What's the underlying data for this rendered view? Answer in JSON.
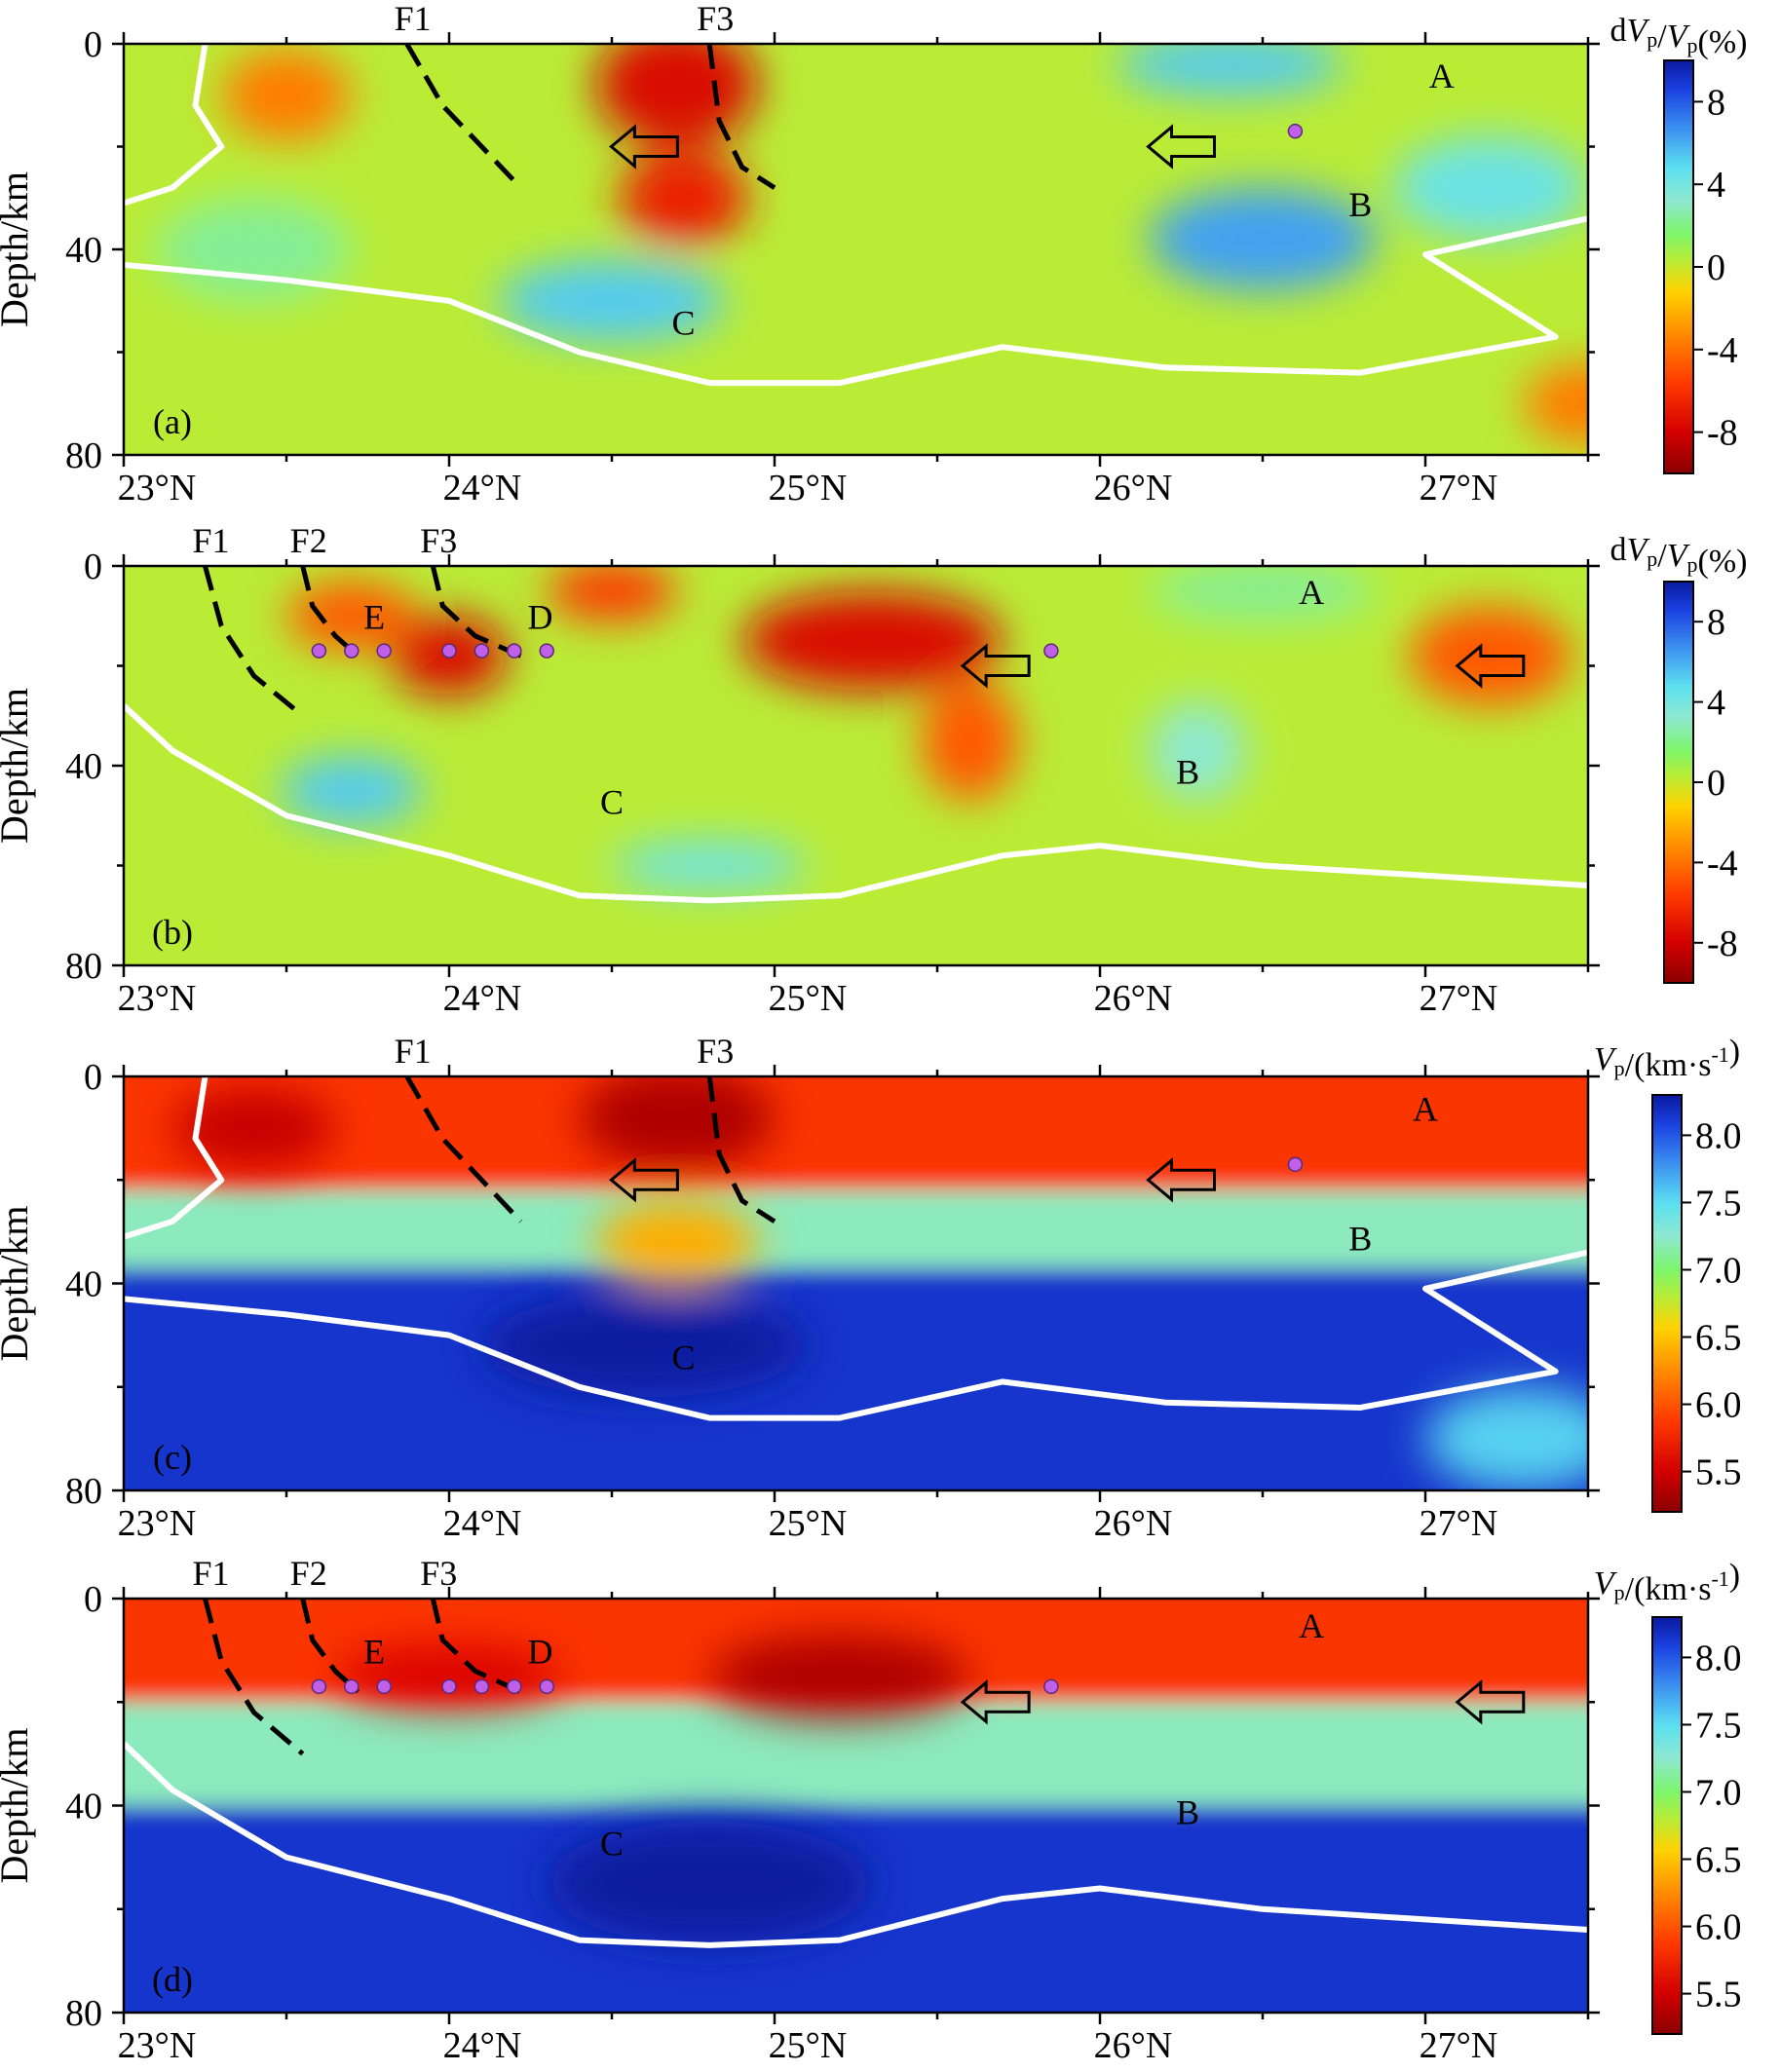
{
  "chart_data": [
    {
      "type": "heatmap",
      "panel": "(a)",
      "field": "dv",
      "ylabel": "Depth/km",
      "x_ticks": [
        "23°N",
        "24°N",
        "25°N",
        "26°N",
        "27°N"
      ],
      "y_ticks": [
        "0",
        "40",
        "80"
      ],
      "xlim": [
        23,
        27.5
      ],
      "ylim": [
        0,
        80
      ],
      "faults": [
        {
          "name": "F1",
          "x0": 23.87,
          "points": [
            [
              23.87,
              0
            ],
            [
              23.98,
              12
            ],
            [
              24.1,
              20
            ],
            [
              24.22,
              28
            ]
          ]
        },
        {
          "name": "F3",
          "x0": 24.8,
          "points": [
            [
              24.8,
              0
            ],
            [
              24.83,
              15
            ],
            [
              24.9,
              24
            ],
            [
              25.0,
              28
            ]
          ]
        }
      ],
      "labels": [
        {
          "text": "A",
          "x": 27.05,
          "y": 7
        },
        {
          "text": "B",
          "x": 26.8,
          "y": 32
        },
        {
          "text": "C",
          "x": 24.72,
          "y": 55
        }
      ],
      "arrows": [
        {
          "x": 24.6,
          "y": 20
        },
        {
          "x": 26.25,
          "y": 20
        }
      ],
      "dots": [
        {
          "x": 26.6,
          "y": 17
        }
      ],
      "white_line_left": [
        [
          23.0,
          31
        ],
        [
          23.15,
          28
        ],
        [
          23.3,
          20
        ],
        [
          23.22,
          12
        ],
        [
          23.25,
          0
        ]
      ],
      "white_line_bottom": [
        [
          23.0,
          43
        ],
        [
          23.5,
          46
        ],
        [
          24.0,
          50
        ],
        [
          24.4,
          60
        ],
        [
          24.8,
          66
        ],
        [
          25.2,
          66
        ],
        [
          25.7,
          59
        ],
        [
          26.2,
          63
        ],
        [
          26.8,
          64
        ],
        [
          27.4,
          57
        ],
        [
          27.0,
          41
        ],
        [
          27.5,
          34
        ]
      ],
      "anomalies": [
        {
          "x": 24.7,
          "y": 8,
          "v": -8,
          "sx": 0.25,
          "sy": 12
        },
        {
          "x": 24.72,
          "y": 30,
          "v": -7,
          "sx": 0.2,
          "sy": 9
        },
        {
          "x": 23.5,
          "y": 10,
          "v": -4,
          "sx": 0.2,
          "sy": 9
        },
        {
          "x": 26.4,
          "y": 4,
          "v": 5,
          "sx": 0.35,
          "sy": 6
        },
        {
          "x": 26.5,
          "y": 38,
          "v": 6,
          "sx": 0.35,
          "sy": 10
        },
        {
          "x": 27.2,
          "y": 28,
          "v": 4,
          "sx": 0.3,
          "sy": 10
        },
        {
          "x": 24.5,
          "y": 50,
          "v": 5,
          "sx": 0.35,
          "sy": 8
        },
        {
          "x": 27.5,
          "y": 70,
          "v": -4,
          "sx": 0.2,
          "sy": 8
        },
        {
          "x": 23.4,
          "y": 40,
          "v": 2,
          "sx": 0.3,
          "sy": 10
        }
      ]
    },
    {
      "type": "heatmap",
      "panel": "(b)",
      "field": "dv",
      "ylabel": "Depth/km",
      "x_ticks": [
        "23°N",
        "24°N",
        "25°N",
        "26°N",
        "27°N"
      ],
      "y_ticks": [
        "0",
        "40",
        "80"
      ],
      "xlim": [
        23,
        27.5
      ],
      "ylim": [
        0,
        80
      ],
      "faults": [
        {
          "name": "F1",
          "x0": 23.25,
          "points": [
            [
              23.25,
              0
            ],
            [
              23.3,
              12
            ],
            [
              23.4,
              22
            ],
            [
              23.55,
              30
            ]
          ]
        },
        {
          "name": "F2",
          "x0": 23.55,
          "points": [
            [
              23.55,
              0
            ],
            [
              23.58,
              8
            ],
            [
              23.65,
              14
            ],
            [
              23.72,
              18
            ]
          ]
        },
        {
          "name": "F3",
          "x0": 23.95,
          "points": [
            [
              23.95,
              0
            ],
            [
              23.98,
              8
            ],
            [
              24.08,
              14
            ],
            [
              24.22,
              18
            ]
          ]
        }
      ],
      "labels": [
        {
          "text": "A",
          "x": 26.65,
          "y": 6
        },
        {
          "text": "B",
          "x": 26.27,
          "y": 42
        },
        {
          "text": "C",
          "x": 24.5,
          "y": 48
        },
        {
          "text": "D",
          "x": 24.28,
          "y": 11
        },
        {
          "text": "E",
          "x": 23.77,
          "y": 11
        }
      ],
      "arrows": [
        {
          "x": 25.68,
          "y": 20
        },
        {
          "x": 27.2,
          "y": 20
        }
      ],
      "dots": [
        {
          "x": 23.6,
          "y": 17
        },
        {
          "x": 23.7,
          "y": 17
        },
        {
          "x": 23.8,
          "y": 17
        },
        {
          "x": 24.0,
          "y": 17
        },
        {
          "x": 24.1,
          "y": 17
        },
        {
          "x": 24.2,
          "y": 17
        },
        {
          "x": 24.3,
          "y": 17
        },
        {
          "x": 25.85,
          "y": 17
        }
      ],
      "white_line_left": [],
      "white_line_bottom": [
        [
          23.0,
          28
        ],
        [
          23.15,
          37
        ],
        [
          23.5,
          50
        ],
        [
          24.0,
          58
        ],
        [
          24.4,
          66
        ],
        [
          24.8,
          67
        ],
        [
          25.2,
          66
        ],
        [
          25.7,
          58
        ],
        [
          26.0,
          56
        ],
        [
          26.5,
          60
        ],
        [
          27.0,
          62
        ],
        [
          27.5,
          64
        ]
      ],
      "anomalies": [
        {
          "x": 25.3,
          "y": 15,
          "v": -8,
          "sx": 0.4,
          "sy": 10
        },
        {
          "x": 24.0,
          "y": 18,
          "v": -8,
          "sx": 0.18,
          "sy": 8
        },
        {
          "x": 23.7,
          "y": 10,
          "v": -5,
          "sx": 0.2,
          "sy": 7
        },
        {
          "x": 24.5,
          "y": 5,
          "v": -6,
          "sx": 0.2,
          "sy": 6
        },
        {
          "x": 25.6,
          "y": 35,
          "v": -5,
          "sx": 0.15,
          "sy": 12
        },
        {
          "x": 27.2,
          "y": 18,
          "v": -5,
          "sx": 0.25,
          "sy": 10
        },
        {
          "x": 23.7,
          "y": 45,
          "v": 5,
          "sx": 0.22,
          "sy": 7
        },
        {
          "x": 24.8,
          "y": 60,
          "v": 4,
          "sx": 0.3,
          "sy": 5
        },
        {
          "x": 26.3,
          "y": 37,
          "v": 3,
          "sx": 0.15,
          "sy": 10
        },
        {
          "x": 26.5,
          "y": 5,
          "v": 2,
          "sx": 0.35,
          "sy": 6
        }
      ]
    },
    {
      "type": "heatmap",
      "panel": "(c)",
      "field": "v",
      "ylabel": "Depth/km",
      "x_ticks": [
        "23°N",
        "24°N",
        "25°N",
        "26°N",
        "27°N"
      ],
      "y_ticks": [
        "0",
        "40",
        "80"
      ],
      "xlim": [
        23,
        27.5
      ],
      "ylim": [
        0,
        80
      ],
      "faults": [
        {
          "name": "F1",
          "x0": 23.87,
          "points": [
            [
              23.87,
              0
            ],
            [
              23.98,
              12
            ],
            [
              24.1,
              20
            ],
            [
              24.22,
              28
            ]
          ]
        },
        {
          "name": "F3",
          "x0": 24.8,
          "points": [
            [
              24.8,
              0
            ],
            [
              24.83,
              15
            ],
            [
              24.9,
              24
            ],
            [
              25.0,
              28
            ]
          ]
        }
      ],
      "labels": [
        {
          "text": "A",
          "x": 27.0,
          "y": 7
        },
        {
          "text": "B",
          "x": 26.8,
          "y": 32
        },
        {
          "text": "C",
          "x": 24.72,
          "y": 55
        }
      ],
      "arrows": [
        {
          "x": 24.6,
          "y": 20
        },
        {
          "x": 26.25,
          "y": 20
        }
      ],
      "dots": [
        {
          "x": 26.6,
          "y": 17
        }
      ],
      "white_line_left": [
        [
          23.0,
          31
        ],
        [
          23.15,
          28
        ],
        [
          23.3,
          20
        ],
        [
          23.22,
          12
        ],
        [
          23.25,
          0
        ]
      ],
      "white_line_bottom": [
        [
          23.0,
          43
        ],
        [
          23.5,
          46
        ],
        [
          24.0,
          50
        ],
        [
          24.4,
          60
        ],
        [
          24.8,
          66
        ],
        [
          25.2,
          66
        ],
        [
          25.7,
          59
        ],
        [
          26.2,
          63
        ],
        [
          26.8,
          64
        ],
        [
          27.4,
          57
        ],
        [
          27.0,
          41
        ],
        [
          27.5,
          34
        ]
      ],
      "layers": [
        22,
        37
      ],
      "anomalies": [
        {
          "x": 24.7,
          "y": 8,
          "v": -0.5,
          "sx": 0.3,
          "sy": 10
        },
        {
          "x": 23.4,
          "y": 10,
          "v": -0.4,
          "sx": 0.25,
          "sy": 8
        },
        {
          "x": 24.7,
          "y": 32,
          "v": -0.8,
          "sx": 0.25,
          "sy": 8
        },
        {
          "x": 24.6,
          "y": 52,
          "v": 0.2,
          "sx": 0.5,
          "sy": 10
        },
        {
          "x": 27.3,
          "y": 70,
          "v": -0.6,
          "sx": 0.3,
          "sy": 10
        }
      ]
    },
    {
      "type": "heatmap",
      "panel": "(d)",
      "field": "v",
      "ylabel": "Depth/km",
      "x_ticks": [
        "23°N",
        "24°N",
        "25°N",
        "26°N",
        "27°N"
      ],
      "y_ticks": [
        "0",
        "40",
        "80"
      ],
      "xlim": [
        23,
        27.5
      ],
      "ylim": [
        0,
        80
      ],
      "faults": [
        {
          "name": "F1",
          "x0": 23.25,
          "points": [
            [
              23.25,
              0
            ],
            [
              23.3,
              12
            ],
            [
              23.4,
              22
            ],
            [
              23.55,
              30
            ]
          ]
        },
        {
          "name": "F2",
          "x0": 23.55,
          "points": [
            [
              23.55,
              0
            ],
            [
              23.58,
              8
            ],
            [
              23.65,
              14
            ],
            [
              23.72,
              18
            ]
          ]
        },
        {
          "name": "F3",
          "x0": 23.95,
          "points": [
            [
              23.95,
              0
            ],
            [
              23.98,
              8
            ],
            [
              24.08,
              14
            ],
            [
              24.22,
              18
            ]
          ]
        }
      ],
      "labels": [
        {
          "text": "A",
          "x": 26.65,
          "y": 6
        },
        {
          "text": "B",
          "x": 26.27,
          "y": 42
        },
        {
          "text": "C",
          "x": 24.5,
          "y": 48
        },
        {
          "text": "D",
          "x": 24.28,
          "y": 11
        },
        {
          "text": "E",
          "x": 23.77,
          "y": 11
        }
      ],
      "arrows": [
        {
          "x": 25.68,
          "y": 20
        },
        {
          "x": 27.2,
          "y": 20
        }
      ],
      "dots": [
        {
          "x": 23.6,
          "y": 17
        },
        {
          "x": 23.7,
          "y": 17
        },
        {
          "x": 23.8,
          "y": 17
        },
        {
          "x": 24.0,
          "y": 17
        },
        {
          "x": 24.1,
          "y": 17
        },
        {
          "x": 24.2,
          "y": 17
        },
        {
          "x": 24.3,
          "y": 17
        },
        {
          "x": 25.85,
          "y": 17
        }
      ],
      "white_line_left": [],
      "white_line_bottom": [
        [
          23.0,
          28
        ],
        [
          23.15,
          37
        ],
        [
          23.5,
          50
        ],
        [
          24.0,
          58
        ],
        [
          24.4,
          66
        ],
        [
          24.8,
          67
        ],
        [
          25.2,
          66
        ],
        [
          25.7,
          58
        ],
        [
          26.0,
          56
        ],
        [
          26.5,
          60
        ],
        [
          27.0,
          62
        ],
        [
          27.5,
          64
        ]
      ],
      "layers": [
        20,
        40
      ],
      "anomalies": [
        {
          "x": 25.2,
          "y": 15,
          "v": -0.5,
          "sx": 0.4,
          "sy": 8
        },
        {
          "x": 24.0,
          "y": 15,
          "v": -0.3,
          "sx": 0.35,
          "sy": 6
        },
        {
          "x": 24.8,
          "y": 55,
          "v": 0.2,
          "sx": 0.5,
          "sy": 12
        }
      ]
    }
  ],
  "colorbars": [
    {
      "title_parts": [
        "d",
        "V",
        "p",
        "/",
        "V",
        "p",
        "(%)"
      ],
      "ticks": [
        "8",
        "4",
        "0",
        "-4",
        "-8"
      ],
      "tick_values": [
        8,
        4,
        0,
        -4,
        -8
      ],
      "min": -10,
      "max": 10
    },
    {
      "title_parts": [
        "d",
        "V",
        "p",
        "/",
        "V",
        "p",
        "(%)"
      ],
      "ticks": [
        "8",
        "4",
        "0",
        "-4",
        "-8"
      ],
      "tick_values": [
        8,
        4,
        0,
        -4,
        -8
      ],
      "min": -10,
      "max": 10
    },
    {
      "title_parts": [
        "V",
        "p",
        "/(km·s",
        "-1",
        ")"
      ],
      "ticks": [
        "8.0",
        "7.5",
        "7.0",
        "6.5",
        "6.0",
        "5.5"
      ],
      "tick_values": [
        8.0,
        7.5,
        7.0,
        6.5,
        6.0,
        5.5
      ],
      "min": 5.2,
      "max": 8.3
    },
    {
      "title_parts": [
        "V",
        "p",
        "/(km·s",
        "-1",
        ")"
      ],
      "ticks": [
        "8.0",
        "7.5",
        "7.0",
        "6.5",
        "6.0",
        "5.5"
      ],
      "tick_values": [
        8.0,
        7.5,
        7.0,
        6.5,
        6.0,
        5.5
      ],
      "min": 5.2,
      "max": 8.3
    }
  ]
}
